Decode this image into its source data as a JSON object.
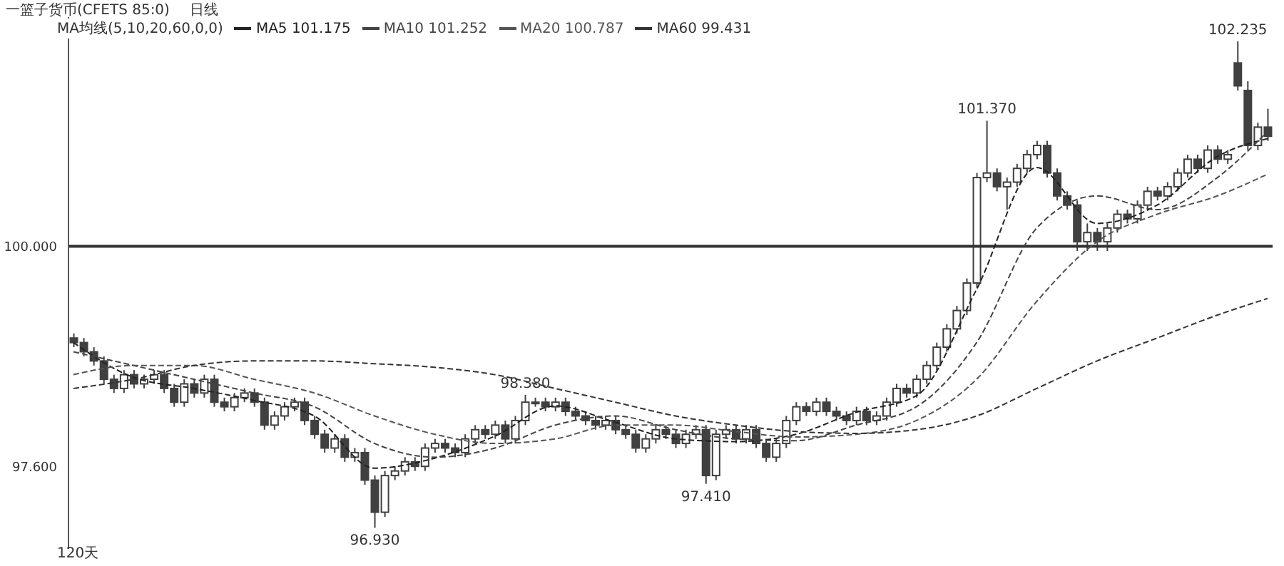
{
  "chart_data": {
    "type": "candlestick",
    "title": "一篮子货币(CFETS 85:0)",
    "subtitle": "日线",
    "legend_title": "MA均线(5,10,20,60,0,0)",
    "legend": "top left",
    "grid": false,
    "tick_labels": "y",
    "line_style": "dashed",
    "marker": "none",
    "categories": [
      null,
      null,
      null,
      null,
      null,
      null,
      null,
      null,
      null,
      null,
      null,
      null,
      null,
      null,
      null,
      null,
      null,
      null,
      null,
      null,
      null,
      null,
      null,
      null,
      null,
      null,
      null,
      null,
      null,
      null,
      null,
      null,
      null,
      null,
      null,
      null,
      null,
      null,
      null,
      null,
      null,
      null,
      null,
      null,
      null,
      null,
      null,
      null,
      null,
      null,
      null,
      null,
      null,
      null,
      null,
      null,
      null,
      null,
      null,
      null,
      null,
      null,
      null,
      null,
      null,
      null,
      null,
      null,
      null,
      null,
      null,
      null,
      null,
      null,
      null,
      null,
      null,
      null,
      null,
      null,
      null,
      null,
      null,
      null,
      null,
      null,
      null,
      null,
      null,
      null,
      null,
      null,
      null,
      null,
      null,
      null,
      null,
      null,
      null,
      null,
      null,
      null,
      null,
      null,
      null,
      null,
      null,
      null,
      null,
      null,
      null,
      null,
      null,
      null,
      null,
      null,
      null,
      null,
      null,
      null
    ],
    "ylim": [
      96.7,
      102.5
    ],
    "yticks": [
      {
        "value": 97.6,
        "label": "97.600"
      },
      {
        "value": 100,
        "label": "100.000"
      }
    ],
    "ref_lines": [
      {
        "axis": "y",
        "value": 100,
        "color": "#333333"
      }
    ],
    "annotations": [
      {
        "text": "102.235",
        "y": 102.235
      },
      {
        "text": "101.370",
        "y": 101.37
      },
      {
        "text": "98.380",
        "y": 98.38
      },
      {
        "text": "96.930",
        "y": 96.93
      },
      {
        "text": "97.410",
        "y": 97.41
      },
      "120天"
    ],
    "series": [
      {
        "color": "#404040",
        "ohlc": [
          [
            99.0,
            99.05,
            98.9,
            98.95
          ],
          [
            98.95,
            99.0,
            98.8,
            98.85
          ],
          [
            98.85,
            98.9,
            98.7,
            98.75
          ],
          [
            98.75,
            98.8,
            98.5,
            98.55
          ],
          [
            98.55,
            98.6,
            98.4,
            98.45
          ],
          [
            98.45,
            98.65,
            98.4,
            98.6
          ],
          [
            98.6,
            98.65,
            98.45,
            98.5
          ],
          [
            98.5,
            98.6,
            98.45,
            98.55
          ],
          [
            98.55,
            98.65,
            98.5,
            98.6
          ],
          [
            98.6,
            98.65,
            98.4,
            98.45
          ],
          [
            98.45,
            98.5,
            98.25,
            98.3
          ],
          [
            98.3,
            98.55,
            98.25,
            98.5
          ],
          [
            98.5,
            98.55,
            98.35,
            98.4
          ],
          [
            98.4,
            98.6,
            98.35,
            98.55
          ],
          [
            98.55,
            98.6,
            98.25,
            98.3
          ],
          [
            98.3,
            98.35,
            98.2,
            98.25
          ],
          [
            98.25,
            98.4,
            98.2,
            98.35
          ],
          [
            98.35,
            98.45,
            98.3,
            98.4
          ],
          [
            98.4,
            98.45,
            98.25,
            98.3
          ],
          [
            98.3,
            98.35,
            98.0,
            98.05
          ],
          [
            98.05,
            98.2,
            98.0,
            98.15
          ],
          [
            98.15,
            98.3,
            98.1,
            98.25
          ],
          [
            98.25,
            98.35,
            98.2,
            98.3
          ],
          [
            98.3,
            98.35,
            98.05,
            98.1
          ],
          [
            98.1,
            98.15,
            97.9,
            97.95
          ],
          [
            97.95,
            98.0,
            97.75,
            97.8
          ],
          [
            97.8,
            97.95,
            97.75,
            97.9
          ],
          [
            97.9,
            97.95,
            97.65,
            97.7
          ],
          [
            97.7,
            97.8,
            97.65,
            97.75
          ],
          [
            97.75,
            97.8,
            97.4,
            97.45
          ],
          [
            97.45,
            97.5,
            96.93,
            97.1
          ],
          [
            97.1,
            97.55,
            97.05,
            97.5
          ],
          [
            97.5,
            97.6,
            97.45,
            97.55
          ],
          [
            97.55,
            97.7,
            97.5,
            97.65
          ],
          [
            97.65,
            97.7,
            97.55,
            97.6
          ],
          [
            97.6,
            97.85,
            97.55,
            97.8
          ],
          [
            97.8,
            97.9,
            97.75,
            97.85
          ],
          [
            97.85,
            97.9,
            97.75,
            97.8
          ],
          [
            97.8,
            97.85,
            97.7,
            97.75
          ],
          [
            97.75,
            97.95,
            97.7,
            97.9
          ],
          [
            97.9,
            98.05,
            97.85,
            98.0
          ],
          [
            98.0,
            98.05,
            97.9,
            97.95
          ],
          [
            97.95,
            98.1,
            97.9,
            98.05
          ],
          [
            98.05,
            98.1,
            97.85,
            97.9
          ],
          [
            97.9,
            98.15,
            97.85,
            98.1
          ],
          [
            98.1,
            98.38,
            98.05,
            98.3
          ],
          [
            98.3,
            98.35,
            98.25,
            98.3
          ],
          [
            98.3,
            98.35,
            98.2,
            98.25
          ],
          [
            98.25,
            98.35,
            98.2,
            98.3
          ],
          [
            98.3,
            98.35,
            98.15,
            98.2
          ],
          [
            98.2,
            98.25,
            98.1,
            98.15
          ],
          [
            98.15,
            98.2,
            98.05,
            98.1
          ],
          [
            98.1,
            98.15,
            98.0,
            98.05
          ],
          [
            98.05,
            98.15,
            98.0,
            98.1
          ],
          [
            98.1,
            98.15,
            97.95,
            98.0
          ],
          [
            98.0,
            98.05,
            97.9,
            97.95
          ],
          [
            97.95,
            98.0,
            97.75,
            97.8
          ],
          [
            97.8,
            97.95,
            97.75,
            97.9
          ],
          [
            97.9,
            98.05,
            97.85,
            98.0
          ],
          [
            98.0,
            98.05,
            97.9,
            97.95
          ],
          [
            97.95,
            98.0,
            97.8,
            97.85
          ],
          [
            97.85,
            98.0,
            97.8,
            97.95
          ],
          [
            97.95,
            98.05,
            97.9,
            98.0
          ],
          [
            98.0,
            98.05,
            97.41,
            97.5
          ],
          [
            97.5,
            98.0,
            97.45,
            97.95
          ],
          [
            97.95,
            98.05,
            97.9,
            98.0
          ],
          [
            98.0,
            98.05,
            97.85,
            97.9
          ],
          [
            97.9,
            98.05,
            97.85,
            98.0
          ],
          [
            98.0,
            98.05,
            97.8,
            97.85
          ],
          [
            97.85,
            97.9,
            97.65,
            97.7
          ],
          [
            97.7,
            97.9,
            97.65,
            97.85
          ],
          [
            97.85,
            98.15,
            97.8,
            98.1
          ],
          [
            98.1,
            98.3,
            98.05,
            98.25
          ],
          [
            98.25,
            98.3,
            98.15,
            98.2
          ],
          [
            98.2,
            98.35,
            98.15,
            98.3
          ],
          [
            98.3,
            98.35,
            98.15,
            98.2
          ],
          [
            98.2,
            98.25,
            98.1,
            98.15
          ],
          [
            98.15,
            98.2,
            98.05,
            98.1
          ],
          [
            98.1,
            98.25,
            98.05,
            98.2
          ],
          [
            98.2,
            98.25,
            98.05,
            98.1
          ],
          [
            98.1,
            98.2,
            98.05,
            98.15
          ],
          [
            98.15,
            98.35,
            98.1,
            98.3
          ],
          [
            98.3,
            98.5,
            98.25,
            98.45
          ],
          [
            98.45,
            98.5,
            98.35,
            98.4
          ],
          [
            98.4,
            98.6,
            98.35,
            98.55
          ],
          [
            98.55,
            98.75,
            98.5,
            98.7
          ],
          [
            98.7,
            98.95,
            98.65,
            98.9
          ],
          [
            98.9,
            99.15,
            98.85,
            99.1
          ],
          [
            99.1,
            99.35,
            99.05,
            99.3
          ],
          [
            99.3,
            99.65,
            99.25,
            99.6
          ],
          [
            99.6,
            100.8,
            99.55,
            100.75
          ],
          [
            100.75,
            101.37,
            100.7,
            100.8
          ],
          [
            100.8,
            100.85,
            100.6,
            100.65
          ],
          [
            100.65,
            100.75,
            100.4,
            100.7
          ],
          [
            100.7,
            100.9,
            100.65,
            100.85
          ],
          [
            100.85,
            101.05,
            100.8,
            101.0
          ],
          [
            101.0,
            101.15,
            100.95,
            101.1
          ],
          [
            101.1,
            101.15,
            100.75,
            100.8
          ],
          [
            100.8,
            100.85,
            100.5,
            100.55
          ],
          [
            100.55,
            100.6,
            100.4,
            100.45
          ],
          [
            100.45,
            100.5,
            99.95,
            100.05
          ],
          [
            100.05,
            100.25,
            99.95,
            100.15
          ],
          [
            100.15,
            100.2,
            99.95,
            100.05
          ],
          [
            100.05,
            100.25,
            99.95,
            100.2
          ],
          [
            100.2,
            100.4,
            100.15,
            100.35
          ],
          [
            100.35,
            100.4,
            100.25,
            100.3
          ],
          [
            100.3,
            100.5,
            100.25,
            100.45
          ],
          [
            100.45,
            100.65,
            100.4,
            100.6
          ],
          [
            100.6,
            100.65,
            100.5,
            100.55
          ],
          [
            100.55,
            100.7,
            100.5,
            100.65
          ],
          [
            100.65,
            100.85,
            100.6,
            100.8
          ],
          [
            100.8,
            101.0,
            100.75,
            100.95
          ],
          [
            100.95,
            101.0,
            100.8,
            100.85
          ],
          [
            100.85,
            101.1,
            100.8,
            101.05
          ],
          [
            101.05,
            101.1,
            100.9,
            100.95
          ],
          [
            100.95,
            101.05,
            100.9,
            101.0
          ],
          [
            102.0,
            102.235,
            101.7,
            101.75
          ],
          [
            101.7,
            101.8,
            101.05,
            101.1
          ],
          [
            101.1,
            101.35,
            101.05,
            101.3
          ],
          [
            101.3,
            101.5,
            101.15,
            101.2
          ]
        ]
      },
      {
        "type": "line",
        "name": "MA5 101.175",
        "color": "#222222",
        "values": [
          98.95,
          null,
          null,
          null,
          null,
          null,
          98.57,
          null,
          null,
          null,
          null,
          null,
          98.45,
          null,
          null,
          null,
          null,
          null,
          98.32,
          null,
          null,
          null,
          null,
          null,
          98.15,
          null,
          null,
          null,
          null,
          null,
          97.58,
          null,
          null,
          null,
          null,
          null,
          97.69,
          null,
          null,
          null,
          null,
          null,
          97.93,
          null,
          null,
          null,
          null,
          null,
          98.26,
          null,
          null,
          null,
          null,
          null,
          98.08,
          null,
          null,
          null,
          null,
          null,
          97.9,
          null,
          null,
          null,
          null,
          null,
          97.87,
          null,
          null,
          null,
          null,
          null,
          97.95,
          null,
          null,
          null,
          null,
          null,
          98.19,
          null,
          null,
          null,
          null,
          null,
          98.37,
          null,
          null,
          null,
          null,
          null,
          99.53,
          null,
          null,
          null,
          null,
          null,
          100.86,
          null,
          null,
          null,
          null,
          null,
          100.25,
          null,
          null,
          null,
          null,
          null,
          100.45,
          null,
          null,
          null,
          null,
          null,
          100.98,
          null,
          null,
          null,
          null,
          101.175
        ]
      },
      {
        "type": "line",
        "name": "MA10 101.252",
        "color": "#444444",
        "values": [
          98.85,
          null,
          null,
          null,
          null,
          null,
          98.7,
          null,
          null,
          null,
          null,
          null,
          98.55,
          null,
          null,
          null,
          null,
          null,
          98.4,
          null,
          null,
          null,
          null,
          null,
          98.25,
          null,
          null,
          null,
          null,
          null,
          97.85,
          null,
          null,
          null,
          null,
          null,
          97.7,
          null,
          null,
          null,
          null,
          null,
          97.8,
          null,
          null,
          null,
          null,
          null,
          98.05,
          null,
          null,
          null,
          null,
          null,
          98.15,
          null,
          null,
          null,
          null,
          null,
          98.0,
          null,
          null,
          null,
          null,
          null,
          97.9,
          null,
          null,
          null,
          null,
          null,
          97.88,
          null,
          null,
          null,
          null,
          null,
          98.05,
          null,
          null,
          null,
          null,
          null,
          98.25,
          null,
          null,
          null,
          null,
          null,
          98.95,
          null,
          null,
          null,
          null,
          null,
          100.2,
          null,
          null,
          null,
          null,
          null,
          100.55,
          null,
          null,
          null,
          null,
          null,
          100.4,
          null,
          null,
          null,
          null,
          null,
          100.75,
          null,
          null,
          null,
          null,
          101.252
        ]
      },
      {
        "type": "line",
        "name": "MA20 100.787",
        "color": "#555555",
        "values": [
          98.6,
          null,
          null,
          null,
          null,
          null,
          98.7,
          null,
          null,
          null,
          null,
          null,
          98.7,
          null,
          null,
          null,
          null,
          null,
          98.55,
          null,
          null,
          null,
          null,
          null,
          98.4,
          null,
          null,
          null,
          null,
          null,
          98.15,
          null,
          null,
          null,
          null,
          null,
          97.95,
          null,
          null,
          null,
          null,
          null,
          97.85,
          null,
          null,
          null,
          null,
          null,
          97.9,
          null,
          null,
          null,
          null,
          null,
          98.05,
          null,
          null,
          null,
          null,
          null,
          98.05,
          null,
          null,
          null,
          null,
          null,
          97.98,
          null,
          null,
          null,
          null,
          null,
          97.92,
          null,
          null,
          null,
          null,
          null,
          97.95,
          null,
          null,
          null,
          null,
          null,
          98.1,
          null,
          null,
          null,
          null,
          null,
          98.55,
          null,
          null,
          null,
          null,
          null,
          99.4,
          null,
          null,
          null,
          null,
          null,
          100.05,
          null,
          null,
          null,
          null,
          null,
          100.35,
          null,
          null,
          null,
          null,
          null,
          100.55,
          null,
          null,
          null,
          null,
          100.787
        ]
      },
      {
        "type": "line",
        "name": "MA60 99.431",
        "color": "#333333",
        "values": [
          98.45,
          null,
          null,
          null,
          null,
          null,
          98.55,
          null,
          null,
          null,
          null,
          null,
          98.7,
          null,
          null,
          null,
          null,
          null,
          98.75,
          null,
          null,
          null,
          null,
          null,
          98.75,
          null,
          null,
          null,
          null,
          null,
          98.72,
          null,
          null,
          null,
          null,
          null,
          98.68,
          null,
          null,
          null,
          null,
          null,
          98.6,
          null,
          null,
          null,
          null,
          null,
          98.45,
          null,
          null,
          null,
          null,
          null,
          98.3,
          null,
          null,
          null,
          null,
          null,
          98.15,
          null,
          null,
          null,
          null,
          null,
          98.05,
          null,
          null,
          null,
          null,
          null,
          97.98,
          null,
          null,
          null,
          null,
          null,
          97.96,
          null,
          null,
          null,
          null,
          null,
          98.0,
          null,
          null,
          null,
          null,
          null,
          98.15,
          null,
          null,
          null,
          null,
          null,
          98.45,
          null,
          null,
          null,
          null,
          null,
          98.75,
          null,
          null,
          null,
          null,
          null,
          99.0,
          null,
          null,
          null,
          null,
          null,
          99.25,
          null,
          null,
          null,
          null,
          99.431
        ]
      }
    ]
  }
}
